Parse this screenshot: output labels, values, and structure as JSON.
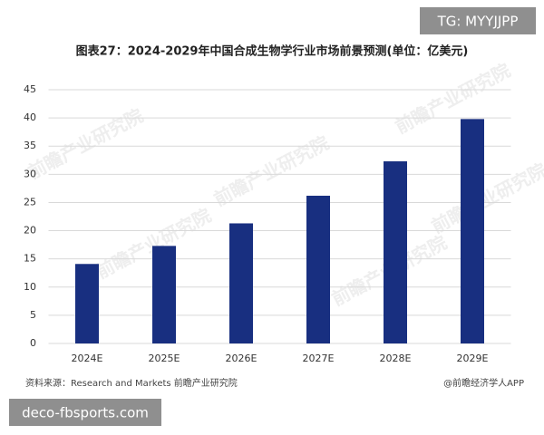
{
  "chart_data": {
    "type": "bar",
    "title": "图表27：2024-2029年中国合成生物学行业市场前景预测(单位：亿美元)",
    "categories": [
      "2024E",
      "2025E",
      "2026E",
      "2027E",
      "2028E",
      "2029E"
    ],
    "values": [
      14.1,
      17.3,
      21.3,
      26.2,
      32.3,
      39.8
    ],
    "color": "#182f80",
    "ylim": [
      0,
      45
    ],
    "yticks": [
      0,
      5,
      10,
      15,
      20,
      25,
      30,
      35,
      40,
      45
    ],
    "grid": true,
    "source": "资料来源：Research and Markets 前瞻产业研究院",
    "credit": "@前瞻经济学人APP",
    "watermark": "前瞻产业研究院"
  },
  "overlays": [
    "TG: MYYJJPP",
    "deco-fbsports.com"
  ]
}
